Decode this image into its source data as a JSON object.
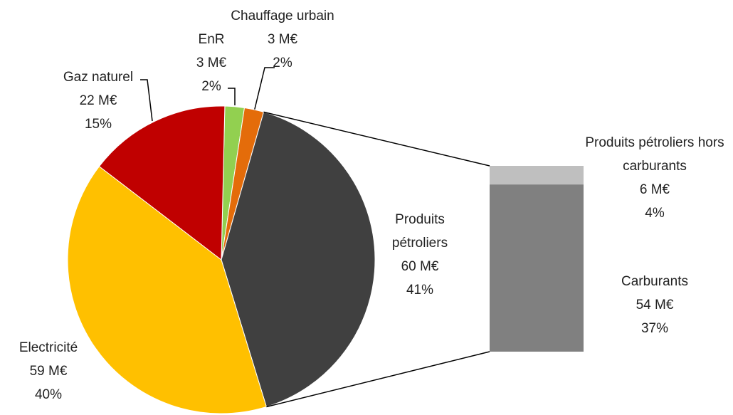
{
  "chart_data": {
    "type": "pie",
    "categories": [
      "EnR",
      "Chauffage urbain",
      "Produits pétroliers",
      "Electricité",
      "Gaz naturel"
    ],
    "values": [
      3,
      3,
      60,
      59,
      22
    ],
    "value_labels": [
      "3 M€",
      "3 M€",
      "60 M€",
      "59 M€",
      "22 M€"
    ],
    "percentages": [
      2,
      2,
      41,
      40,
      15
    ],
    "percentage_labels": [
      "2%",
      "2%",
      "41%",
      "40%",
      "15%"
    ],
    "colors": [
      "#92d050",
      "#e46c0a",
      "#404040",
      "#ffc000",
      "#c00000"
    ],
    "breakdown": {
      "categories": [
        "Carburants",
        "Produits pétroliers hors carburants"
      ],
      "values": [
        54,
        6
      ],
      "value_labels": [
        "54 M€",
        "6 M€"
      ],
      "percentages": [
        37,
        4
      ],
      "percentage_labels": [
        "37%",
        "4%"
      ],
      "colors": [
        "#808080",
        "#bfbfbf"
      ]
    }
  }
}
